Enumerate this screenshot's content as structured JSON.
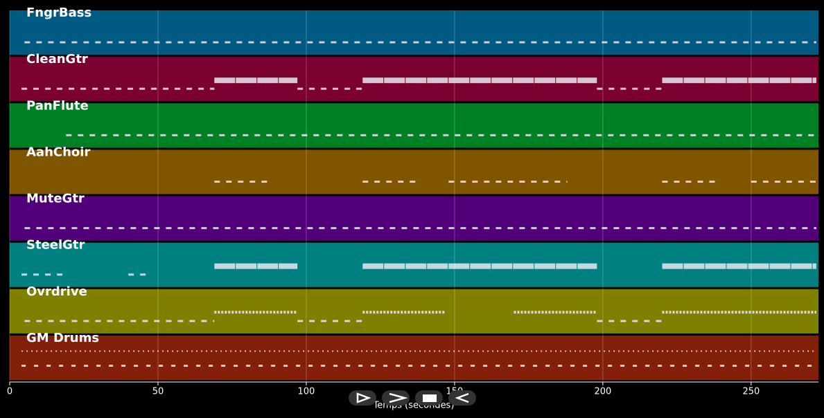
{
  "chart_data": {
    "type": "pianoroll",
    "xlabel": "Temps (secondes)",
    "xlim": [
      0,
      272.7
    ],
    "xticks": [
      0,
      50,
      100,
      150,
      200,
      250
    ],
    "grid": true,
    "note_color": "#e8e8f0",
    "tracks": [
      {
        "name": "FngrBass",
        "color": "#005a82",
        "sparse": [
          [
            5,
            272
          ]
        ],
        "dense": []
      },
      {
        "name": "CleanGtr",
        "color": "#7a0030",
        "sparse": [
          [
            4,
            69
          ],
          [
            97,
            119
          ],
          [
            198,
            220
          ]
        ],
        "dense": [
          [
            69,
            97
          ],
          [
            119,
            198
          ],
          [
            220,
            272
          ]
        ]
      },
      {
        "name": "PanFlute",
        "color": "#008025",
        "sparse": [
          [
            19,
            272
          ]
        ],
        "dense": []
      },
      {
        "name": "AahChoir",
        "color": "#7f5500",
        "sparse": [
          [
            69,
            87
          ],
          [
            119,
            138
          ],
          [
            148,
            188
          ],
          [
            220,
            238
          ],
          [
            250,
            272
          ]
        ],
        "dense": []
      },
      {
        "name": "MuteGtr",
        "color": "#52007a",
        "sparse": [
          [
            5,
            272
          ]
        ],
        "dense": []
      },
      {
        "name": "SteelGtr",
        "color": "#008080",
        "sparse": [
          [
            4,
            19
          ],
          [
            40,
            47
          ]
        ],
        "dense": [
          [
            69,
            97
          ],
          [
            119,
            198
          ],
          [
            220,
            272
          ]
        ]
      },
      {
        "name": "Ovrdrive",
        "color": "#7f7f00",
        "sparse": [
          [
            5,
            69
          ],
          [
            97,
            119
          ],
          [
            198,
            220
          ]
        ],
        "dense": [
          [
            69,
            97
          ],
          [
            119,
            147
          ],
          [
            170,
            198
          ],
          [
            220,
            272
          ]
        ]
      },
      {
        "name": "GM Drums",
        "color": "#82200a",
        "sparse": [
          [
            4,
            272
          ]
        ],
        "dense": []
      }
    ]
  }
}
